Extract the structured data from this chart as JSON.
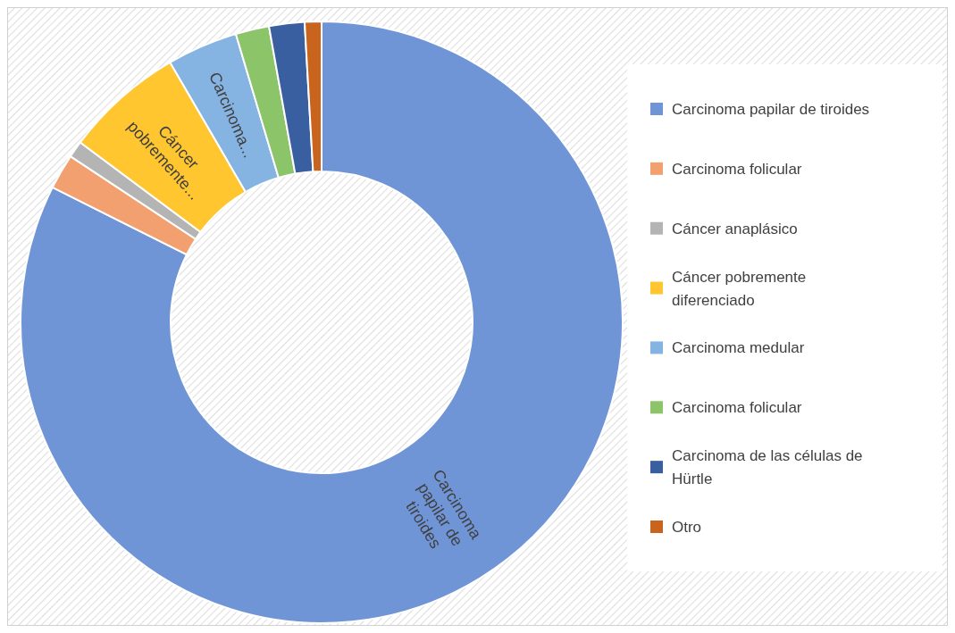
{
  "chart_data": {
    "type": "donut",
    "categories": [
      "Carcinoma papilar de tiroides",
      "Carcinoma folicular",
      "Cáncer anaplásico",
      "Cáncer pobremente diferenciado",
      "Carcinoma medular",
      "Carcinoma folicular",
      "Carcinoma de las células de Hürtle",
      "Otro"
    ],
    "values": [
      82.4,
      1.9,
      0.9,
      6.4,
      3.8,
      1.8,
      1.9,
      0.9
    ],
    "colors": [
      "#7095d6",
      "#f2a070",
      "#b4b4b4",
      "#ffc630",
      "#86b4e2",
      "#8cc46a",
      "#3a5fa0",
      "#c8641e"
    ],
    "annotations": [
      {
        "text": "Carcinoma papilar de tiroides",
        "x": "Carcinoma papilar de tiroides"
      },
      {
        "text": "Cáncer pobremente...",
        "x": "Cáncer pobremente diferenciado"
      },
      {
        "text": "Carcinoma...",
        "x": "Carcinoma medular"
      }
    ],
    "legend": "right"
  }
}
